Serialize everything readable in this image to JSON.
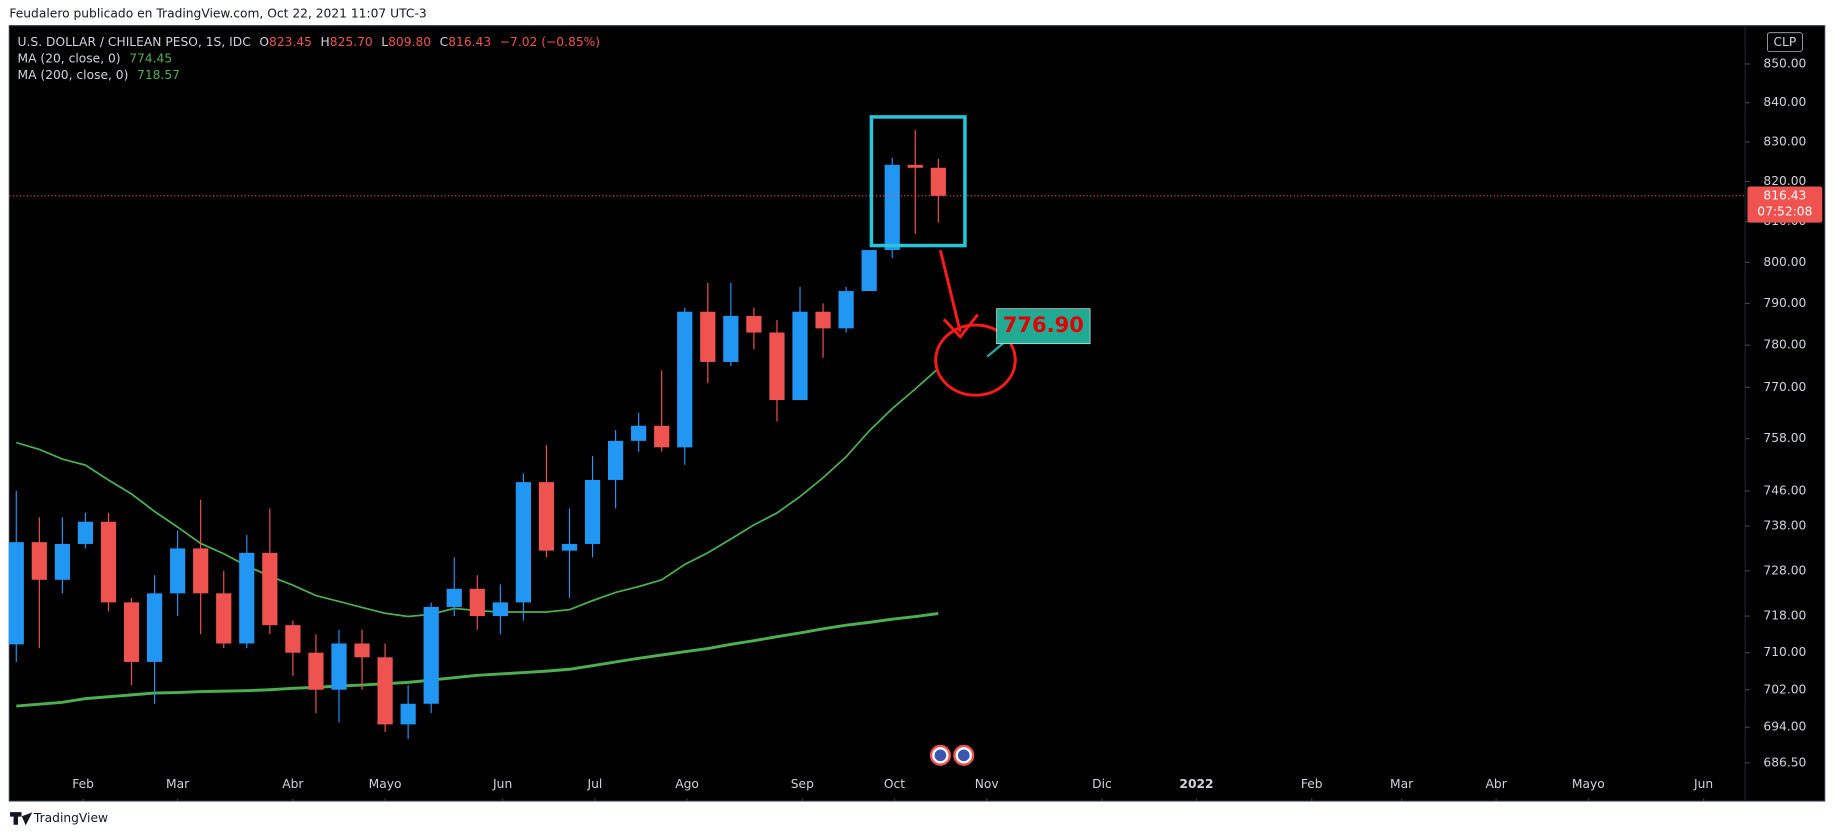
{
  "header": "Feudalero publicado en TradingView.com, Oct 22, 2021 11:07 UTC-3",
  "footer": "TradingView",
  "chart_data": {
    "type": "candlestick",
    "symbol": "U.S. DOLLAR / CHILEAN PESO, 1S, IDC",
    "currency": "CLP",
    "ohlc_labels": [
      "O",
      "H",
      "L",
      "C"
    ],
    "legend_values": [
      "823.45",
      "825.70",
      "809.80",
      "816.43"
    ],
    "change": "−7.02 (−0.85%)",
    "countdown": "07:52:08",
    "annotation": "776.90",
    "log": true,
    "up_color": "#2196f3",
    "down_color": "#ef5350",
    "x": [
      0,
      1,
      2,
      3,
      4,
      5,
      6,
      7,
      8,
      9,
      10,
      11,
      12,
      13,
      14,
      15,
      16,
      17,
      18,
      19,
      20,
      21,
      22,
      23,
      24,
      25,
      26,
      27,
      28,
      29,
      30,
      31,
      32,
      33,
      34,
      35,
      36,
      37,
      38,
      39,
      40
    ],
    "open": [
      711.8,
      734.4,
      726,
      734,
      739,
      721,
      708,
      723,
      733,
      723,
      712,
      732,
      716,
      710,
      702,
      712,
      709,
      694.6,
      699,
      720,
      724,
      718,
      721,
      748,
      732.5,
      734,
      748.5,
      757.5,
      761,
      756,
      788,
      776,
      787,
      783,
      767,
      788,
      784,
      793,
      803,
      824.2,
      823.45
    ],
    "high": [
      746,
      740,
      740,
      741,
      741,
      722,
      727,
      737,
      744,
      728,
      736,
      742,
      717,
      714,
      715,
      715,
      712,
      703,
      721,
      731,
      727,
      725,
      750,
      756.5,
      742,
      754,
      760,
      764,
      774,
      789,
      795,
      795,
      789,
      786,
      794,
      790,
      794,
      803,
      826,
      833,
      825.7
    ],
    "low": [
      708,
      711,
      723,
      733,
      719,
      703,
      699,
      718,
      714,
      711,
      711,
      714,
      705,
      697,
      695,
      702,
      693,
      691.5,
      697,
      718,
      715,
      714,
      717,
      731,
      722,
      731,
      742,
      755,
      755,
      752,
      771,
      775,
      779,
      762,
      767,
      777,
      783,
      793,
      801,
      807,
      809.8
    ],
    "close": [
      734.4,
      726,
      734,
      739,
      721,
      708,
      723,
      733,
      723,
      712,
      732,
      716,
      710,
      702,
      712,
      709,
      694.6,
      699,
      720,
      724,
      718,
      721,
      748,
      732.5,
      734,
      748.5,
      757.5,
      761,
      756,
      788,
      776,
      787,
      783,
      767,
      788,
      784,
      793,
      803,
      824.2,
      823.45,
      816.43
    ],
    "series": [
      {
        "name": "MA (20, close, 0)",
        "color": "#4caf50",
        "width": 1.5,
        "values": [
          757.1,
          755.5,
          753.3,
          751.9,
          748.5,
          745.3,
          741.3,
          737.8,
          734.1,
          731.8,
          729.1,
          726.8,
          724.8,
          722.5,
          721.2,
          719.9,
          718.6,
          717.9,
          718.4,
          719.7,
          719.2,
          718.9,
          718.9,
          718.9,
          719.4,
          721.4,
          723.2,
          724.5,
          726.0,
          729.4,
          732.0,
          735.1,
          738.3,
          741.0,
          744.7,
          749.0,
          753.8,
          759.8,
          765.0,
          769.6,
          774.45
        ]
      },
      {
        "name": "MA (200, close, 0)",
        "color": "#4caf50",
        "width": 2.5,
        "values": [
          698.5,
          698.9,
          699.3,
          700.1,
          700.5,
          700.9,
          701.3,
          701.4,
          701.6,
          701.7,
          701.8,
          702.0,
          702.3,
          702.5,
          702.8,
          703.0,
          703.3,
          703.6,
          704.1,
          704.6,
          705.1,
          705.4,
          705.7,
          706.0,
          706.4,
          707.2,
          708.0,
          708.8,
          709.5,
          710.2,
          710.9,
          711.8,
          712.6,
          713.5,
          714.3,
          715.2,
          716.0,
          716.6,
          717.3,
          717.9,
          718.57
        ]
      }
    ],
    "ylim": [
      680,
      860
    ],
    "yticks": [
      {
        "value": 850,
        "label": "850.00"
      },
      {
        "value": 840,
        "label": "840.00"
      },
      {
        "value": 830,
        "label": "830.00"
      },
      {
        "value": 820,
        "label": "820.00"
      },
      {
        "value": 810,
        "label": "810.00"
      },
      {
        "value": 800,
        "label": "800.00"
      },
      {
        "value": 790,
        "label": "790.00"
      },
      {
        "value": 780,
        "label": "780.00"
      },
      {
        "value": 770,
        "label": "770.00"
      },
      {
        "value": 758,
        "label": "758.00"
      },
      {
        "value": 746,
        "label": "746.00"
      },
      {
        "value": 738,
        "label": "738.00"
      },
      {
        "value": 728,
        "label": "728.00"
      },
      {
        "value": 718,
        "label": "718.00"
      },
      {
        "value": 710,
        "label": "710.00"
      },
      {
        "value": 702,
        "label": "702.00"
      },
      {
        "value": 694,
        "label": "694.00"
      },
      {
        "value": 686.5,
        "label": "686.50"
      }
    ],
    "xlim": [
      -0.3,
      75
    ],
    "xticks": [
      {
        "value": 2.9,
        "label": "Feb"
      },
      {
        "value": 7.0,
        "label": "Mar"
      },
      {
        "value": 12.0,
        "label": "Abr"
      },
      {
        "value": 16.0,
        "label": "Mayo"
      },
      {
        "value": 21.1,
        "label": "Jun"
      },
      {
        "value": 25.1,
        "label": "Jul"
      },
      {
        "value": 29.1,
        "label": "Ago"
      },
      {
        "value": 34.1,
        "label": "Sep"
      },
      {
        "value": 38.1,
        "label": "Oct"
      },
      {
        "value": 42.1,
        "label": "Nov"
      },
      {
        "value": 47.1,
        "label": "Dic"
      },
      {
        "value": 51.2,
        "label": "2022"
      },
      {
        "value": 56.2,
        "label": "Feb"
      },
      {
        "value": 60.1,
        "label": "Mar"
      },
      {
        "value": 64.2,
        "label": "Abr"
      },
      {
        "value": 68.2,
        "label": "Mayo"
      },
      {
        "value": 73.2,
        "label": "Jun"
      }
    ]
  }
}
